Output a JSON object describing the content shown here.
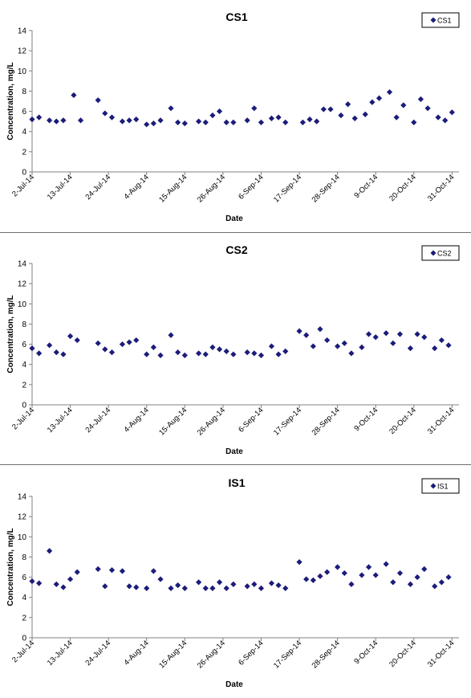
{
  "chart_data": [
    {
      "type": "scatter",
      "title": "CS1",
      "xlabel": "Date",
      "ylabel": "Concentration, mg/L",
      "legend": "top-right",
      "ylim": [
        0,
        14
      ],
      "yticks": [
        "0",
        "2",
        "4",
        "6",
        "8",
        "10",
        "12",
        "14"
      ],
      "xlim": [
        "2-Jul-14",
        "2-Nov-14"
      ],
      "xticks": [
        "2-Jul-14",
        "13-Jul-14",
        "24-Jul-14",
        "4-Aug-14",
        "15-Aug-14",
        "26-Aug-14",
        "6-Sep-14",
        "17-Sep-14",
        "28-Sep-14",
        "9-Oct-14",
        "20-Oct-14",
        "31-Oct-14"
      ],
      "series": [
        {
          "name": "CS1",
          "color": "#1c1c7a",
          "points": [
            [
              "2-Jul-14",
              5.2
            ],
            [
              "4-Jul-14",
              5.4
            ],
            [
              "7-Jul-14",
              5.1
            ],
            [
              "9-Jul-14",
              5.0
            ],
            [
              "11-Jul-14",
              5.1
            ],
            [
              "14-Jul-14",
              7.6
            ],
            [
              "16-Jul-14",
              5.1
            ],
            [
              "21-Jul-14",
              7.1
            ],
            [
              "23-Jul-14",
              5.8
            ],
            [
              "25-Jul-14",
              5.4
            ],
            [
              "28-Jul-14",
              5.0
            ],
            [
              "30-Jul-14",
              5.1
            ],
            [
              "1-Aug-14",
              5.2
            ],
            [
              "4-Aug-14",
              4.7
            ],
            [
              "6-Aug-14",
              4.8
            ],
            [
              "8-Aug-14",
              5.1
            ],
            [
              "11-Aug-14",
              6.3
            ],
            [
              "13-Aug-14",
              4.9
            ],
            [
              "15-Aug-14",
              4.8
            ],
            [
              "19-Aug-14",
              5.0
            ],
            [
              "21-Aug-14",
              4.9
            ],
            [
              "23-Aug-14",
              5.6
            ],
            [
              "25-Aug-14",
              6.0
            ],
            [
              "27-Aug-14",
              4.9
            ],
            [
              "29-Aug-14",
              4.9
            ],
            [
              "2-Sep-14",
              5.1
            ],
            [
              "4-Sep-14",
              6.3
            ],
            [
              "6-Sep-14",
              4.9
            ],
            [
              "9-Sep-14",
              5.3
            ],
            [
              "11-Sep-14",
              5.4
            ],
            [
              "13-Sep-14",
              4.9
            ],
            [
              "18-Sep-14",
              4.9
            ],
            [
              "20-Sep-14",
              5.2
            ],
            [
              "22-Sep-14",
              5.0
            ],
            [
              "24-Sep-14",
              6.2
            ],
            [
              "26-Sep-14",
              6.2
            ],
            [
              "29-Sep-14",
              5.6
            ],
            [
              "1-Oct-14",
              6.7
            ],
            [
              "3-Oct-14",
              5.3
            ],
            [
              "6-Oct-14",
              5.7
            ],
            [
              "8-Oct-14",
              6.9
            ],
            [
              "10-Oct-14",
              7.3
            ],
            [
              "13-Oct-14",
              7.9
            ],
            [
              "15-Oct-14",
              5.4
            ],
            [
              "17-Oct-14",
              6.6
            ],
            [
              "20-Oct-14",
              4.9
            ],
            [
              "22-Oct-14",
              7.2
            ],
            [
              "24-Oct-14",
              6.3
            ],
            [
              "27-Oct-14",
              5.4
            ],
            [
              "29-Oct-14",
              5.1
            ],
            [
              "31-Oct-14",
              5.9
            ]
          ]
        }
      ]
    },
    {
      "type": "scatter",
      "title": "CS2",
      "xlabel": "Date",
      "ylabel": "Concentration, mg/L",
      "legend": "top-right",
      "ylim": [
        0,
        14
      ],
      "yticks": [
        "0",
        "2",
        "4",
        "6",
        "8",
        "10",
        "12",
        "14"
      ],
      "xlim": [
        "2-Jul-14",
        "2-Nov-14"
      ],
      "xticks": [
        "2-Jul-14",
        "13-Jul-14",
        "24-Jul-14",
        "4-Aug-14",
        "15-Aug-14",
        "26-Aug-14",
        "6-Sep-14",
        "17-Sep-14",
        "28-Sep-14",
        "9-Oct-14",
        "20-Oct-14",
        "31-Oct-14"
      ],
      "series": [
        {
          "name": "CS2",
          "color": "#1c1c7a",
          "points": [
            [
              "2-Jul-14",
              5.6
            ],
            [
              "4-Jul-14",
              5.1
            ],
            [
              "7-Jul-14",
              5.9
            ],
            [
              "9-Jul-14",
              5.2
            ],
            [
              "11-Jul-14",
              5.0
            ],
            [
              "13-Jul-14",
              6.8
            ],
            [
              "15-Jul-14",
              6.4
            ],
            [
              "21-Jul-14",
              6.1
            ],
            [
              "23-Jul-14",
              5.5
            ],
            [
              "25-Jul-14",
              5.2
            ],
            [
              "28-Jul-14",
              6.0
            ],
            [
              "30-Jul-14",
              6.2
            ],
            [
              "1-Aug-14",
              6.4
            ],
            [
              "4-Aug-14",
              5.0
            ],
            [
              "6-Aug-14",
              5.7
            ],
            [
              "8-Aug-14",
              4.9
            ],
            [
              "11-Aug-14",
              6.9
            ],
            [
              "13-Aug-14",
              5.2
            ],
            [
              "15-Aug-14",
              4.9
            ],
            [
              "19-Aug-14",
              5.1
            ],
            [
              "21-Aug-14",
              5.0
            ],
            [
              "23-Aug-14",
              5.7
            ],
            [
              "25-Aug-14",
              5.5
            ],
            [
              "27-Aug-14",
              5.3
            ],
            [
              "29-Aug-14",
              5.0
            ],
            [
              "2-Sep-14",
              5.2
            ],
            [
              "4-Sep-14",
              5.1
            ],
            [
              "6-Sep-14",
              4.9
            ],
            [
              "9-Sep-14",
              5.8
            ],
            [
              "11-Sep-14",
              5.0
            ],
            [
              "13-Sep-14",
              5.3
            ],
            [
              "17-Sep-14",
              7.3
            ],
            [
              "19-Sep-14",
              6.9
            ],
            [
              "21-Sep-14",
              5.8
            ],
            [
              "23-Sep-14",
              7.5
            ],
            [
              "25-Sep-14",
              6.4
            ],
            [
              "28-Sep-14",
              5.8
            ],
            [
              "30-Sep-14",
              6.1
            ],
            [
              "2-Oct-14",
              5.1
            ],
            [
              "5-Oct-14",
              5.7
            ],
            [
              "7-Oct-14",
              7.0
            ],
            [
              "9-Oct-14",
              6.7
            ],
            [
              "12-Oct-14",
              7.1
            ],
            [
              "14-Oct-14",
              6.1
            ],
            [
              "16-Oct-14",
              7.0
            ],
            [
              "19-Oct-14",
              5.6
            ],
            [
              "21-Oct-14",
              7.0
            ],
            [
              "23-Oct-14",
              6.7
            ],
            [
              "26-Oct-14",
              5.6
            ],
            [
              "28-Oct-14",
              6.4
            ],
            [
              "30-Oct-14",
              5.9
            ]
          ]
        }
      ]
    },
    {
      "type": "scatter",
      "title": "IS1",
      "xlabel": "Date",
      "ylabel": "Concentration, mg/L",
      "legend": "top-right",
      "ylim": [
        0,
        14
      ],
      "yticks": [
        "0",
        "2",
        "4",
        "6",
        "8",
        "10",
        "12",
        "14"
      ],
      "xlim": [
        "2-Jul-14",
        "2-Nov-14"
      ],
      "xticks": [
        "2-Jul-14",
        "13-Jul-14",
        "24-Jul-14",
        "4-Aug-14",
        "15-Aug-14",
        "26-Aug-14",
        "6-Sep-14",
        "17-Sep-14",
        "28-Sep-14",
        "9-Oct-14",
        "20-Oct-14",
        "31-Oct-14"
      ],
      "series": [
        {
          "name": "IS1",
          "color": "#1c1c7a",
          "points": [
            [
              "2-Jul-14",
              5.6
            ],
            [
              "4-Jul-14",
              5.4
            ],
            [
              "7-Jul-14",
              8.6
            ],
            [
              "9-Jul-14",
              5.3
            ],
            [
              "11-Jul-14",
              5.0
            ],
            [
              "13-Jul-14",
              5.8
            ],
            [
              "15-Jul-14",
              6.5
            ],
            [
              "21-Jul-14",
              6.8
            ],
            [
              "23-Jul-14",
              5.1
            ],
            [
              "25-Jul-14",
              6.7
            ],
            [
              "28-Jul-14",
              6.6
            ],
            [
              "30-Jul-14",
              5.1
            ],
            [
              "1-Aug-14",
              5.0
            ],
            [
              "4-Aug-14",
              4.9
            ],
            [
              "6-Aug-14",
              6.6
            ],
            [
              "8-Aug-14",
              5.8
            ],
            [
              "11-Aug-14",
              4.9
            ],
            [
              "13-Aug-14",
              5.2
            ],
            [
              "15-Aug-14",
              4.9
            ],
            [
              "19-Aug-14",
              5.5
            ],
            [
              "21-Aug-14",
              4.9
            ],
            [
              "23-Aug-14",
              4.9
            ],
            [
              "25-Aug-14",
              5.5
            ],
            [
              "27-Aug-14",
              4.9
            ],
            [
              "29-Aug-14",
              5.3
            ],
            [
              "2-Sep-14",
              5.1
            ],
            [
              "4-Sep-14",
              5.3
            ],
            [
              "6-Sep-14",
              4.9
            ],
            [
              "9-Sep-14",
              5.4
            ],
            [
              "11-Sep-14",
              5.2
            ],
            [
              "13-Sep-14",
              4.9
            ],
            [
              "17-Sep-14",
              7.5
            ],
            [
              "19-Sep-14",
              5.8
            ],
            [
              "21-Sep-14",
              5.7
            ],
            [
              "23-Sep-14",
              6.1
            ],
            [
              "25-Sep-14",
              6.5
            ],
            [
              "28-Sep-14",
              7.0
            ],
            [
              "30-Sep-14",
              6.4
            ],
            [
              "2-Oct-14",
              5.3
            ],
            [
              "5-Oct-14",
              6.2
            ],
            [
              "7-Oct-14",
              7.0
            ],
            [
              "9-Oct-14",
              6.2
            ],
            [
              "12-Oct-14",
              7.3
            ],
            [
              "14-Oct-14",
              5.5
            ],
            [
              "16-Oct-14",
              6.4
            ],
            [
              "19-Oct-14",
              5.3
            ],
            [
              "21-Oct-14",
              6.0
            ],
            [
              "23-Oct-14",
              6.8
            ],
            [
              "26-Oct-14",
              5.1
            ],
            [
              "28-Oct-14",
              5.5
            ],
            [
              "30-Oct-14",
              6.0
            ]
          ]
        }
      ]
    }
  ]
}
